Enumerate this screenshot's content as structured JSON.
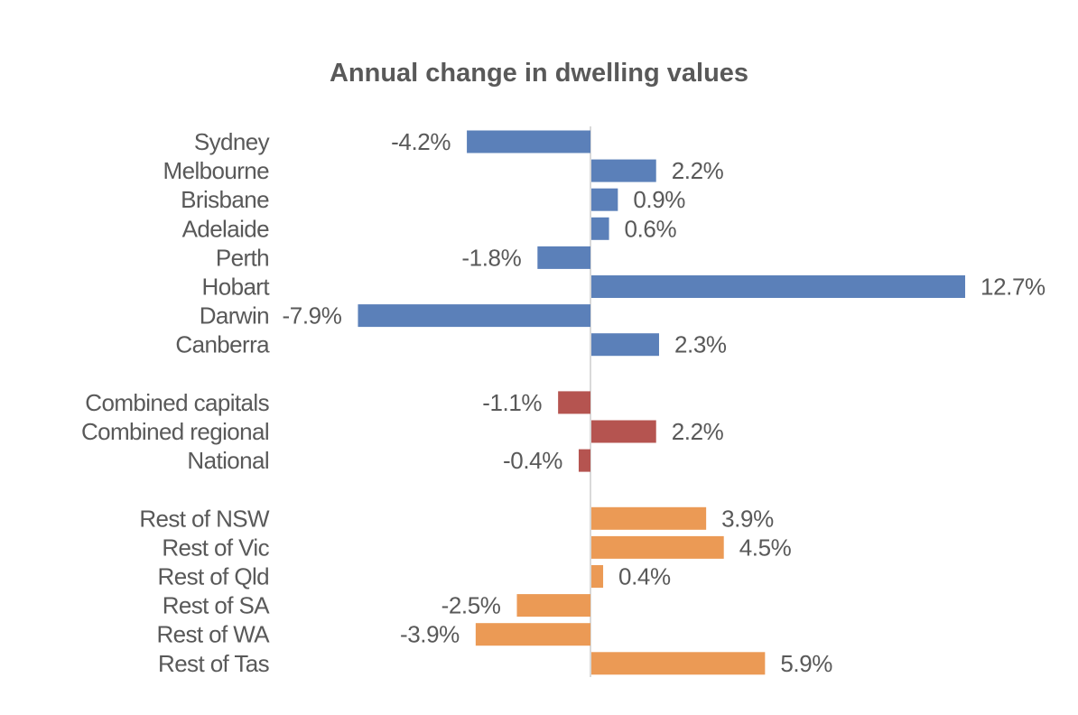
{
  "chart_data": {
    "type": "bar",
    "orientation": "horizontal",
    "title": "Annual change in dwelling values",
    "xlabel": "",
    "ylabel": "",
    "grid": false,
    "legend": "none",
    "unit": "%",
    "groups": [
      {
        "name": "Capital cities",
        "color": "#5B80B9",
        "categories": [
          "Sydney",
          "Melbourne",
          "Brisbane",
          "Adelaide",
          "Perth",
          "Hobart",
          "Darwin",
          "Canberra"
        ],
        "values": [
          -4.2,
          2.2,
          0.9,
          0.6,
          -1.8,
          12.7,
          -7.9,
          2.3
        ],
        "labels": [
          "-4.2%",
          "2.2%",
          "0.9%",
          "0.6%",
          "-1.8%",
          "12.7%",
          "-7.9%",
          "2.3%"
        ]
      },
      {
        "name": "Aggregates",
        "color": "#B55450",
        "categories": [
          "Combined capitals",
          "Combined regional",
          "National"
        ],
        "values": [
          -1.1,
          2.2,
          -0.4
        ],
        "labels": [
          "-1.1%",
          "2.2%",
          "-0.4%"
        ]
      },
      {
        "name": "Regional",
        "color": "#EB9A55",
        "categories": [
          "Rest of NSW",
          "Rest of Vic",
          "Rest of Qld",
          "Rest of SA",
          "Rest of WA",
          "Rest of Tas"
        ],
        "values": [
          3.9,
          4.5,
          0.4,
          -2.5,
          -3.9,
          5.9
        ],
        "labels": [
          "3.9%",
          "4.5%",
          "0.4%",
          "-2.5%",
          "-3.9%",
          "5.9%"
        ]
      }
    ],
    "xlim": [
      -7.9,
      12.7
    ]
  }
}
